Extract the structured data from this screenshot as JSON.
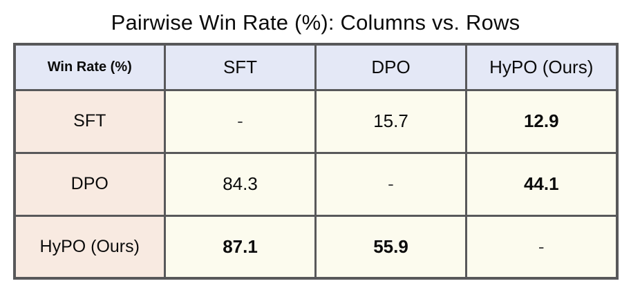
{
  "title": "Pairwise Win Rate (%): Columns vs. Rows",
  "colors": {
    "header_bg": "#e4e8f6",
    "row_header_bg": "#f8eae1",
    "cell_bg": "#fcfbee",
    "border": "#58585a"
  },
  "table": {
    "corner_label": "Win Rate (%)",
    "columns": [
      "SFT",
      "DPO",
      "HyPO (Ours)"
    ],
    "rows": [
      {
        "label": "SFT",
        "values": [
          {
            "text": "-",
            "bold": false,
            "dash": true
          },
          {
            "text": "15.7",
            "bold": false,
            "dash": false
          },
          {
            "text": "12.9",
            "bold": true,
            "dash": false
          }
        ]
      },
      {
        "label": "DPO",
        "values": [
          {
            "text": "84.3",
            "bold": false,
            "dash": false
          },
          {
            "text": "-",
            "bold": false,
            "dash": true
          },
          {
            "text": "44.1",
            "bold": true,
            "dash": false
          }
        ]
      },
      {
        "label": "HyPO (Ours)",
        "values": [
          {
            "text": "87.1",
            "bold": true,
            "dash": false
          },
          {
            "text": "55.9",
            "bold": true,
            "dash": false
          },
          {
            "text": "-",
            "bold": false,
            "dash": true
          }
        ]
      }
    ]
  },
  "chart_data": {
    "type": "table",
    "title": "Pairwise Win Rate (%): Columns vs. Rows",
    "columns": [
      "Win Rate (%)",
      "SFT",
      "DPO",
      "HyPO (Ours)"
    ],
    "rows": [
      [
        "SFT",
        "-",
        15.7,
        12.9
      ],
      [
        "DPO",
        84.3,
        "-",
        44.1
      ],
      [
        "HyPO (Ours)",
        87.1,
        55.9,
        "-"
      ]
    ],
    "bold_values": [
      12.9,
      44.1,
      87.1,
      55.9
    ],
    "legend_position": "none",
    "grid": true
  }
}
